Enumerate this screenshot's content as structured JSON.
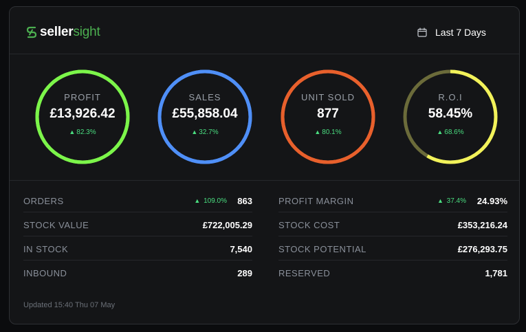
{
  "brand": {
    "bold": "seller",
    "light": "sight"
  },
  "date_range": {
    "label": "Last 7 Days"
  },
  "metrics": [
    {
      "label": "PROFIT",
      "value": "£13,926.42",
      "change": "82.3%",
      "color": "#7cf54a",
      "progress": 1.0
    },
    {
      "label": "SALES",
      "value": "£55,858.04",
      "change": "32.7%",
      "color": "#4f8ff7",
      "progress": 1.0
    },
    {
      "label": "UNIT SOLD",
      "value": "877",
      "change": "80.1%",
      "color": "#e8602c",
      "progress": 1.0
    },
    {
      "label": "R.O.I",
      "value": "58.45%",
      "change": "68.6%",
      "color": "#f2f25a",
      "track_color": "#6b6b3a",
      "progress": 0.5845
    }
  ],
  "stats_left": [
    {
      "label": "ORDERS",
      "value": "863",
      "change": "109.0%"
    },
    {
      "label": "STOCK VALUE",
      "value": "£722,005.29"
    },
    {
      "label": "IN STOCK",
      "value": "7,540"
    },
    {
      "label": "INBOUND",
      "value": "289"
    }
  ],
  "stats_right": [
    {
      "label": "PROFIT MARGIN",
      "value": "24.93%",
      "change": "37.4%"
    },
    {
      "label": "STOCK COST",
      "value": "£353,216.24"
    },
    {
      "label": "STOCK POTENTIAL",
      "value": "£276,293.75"
    },
    {
      "label": "RESERVED",
      "value": "1,781"
    }
  ],
  "footer": {
    "updated": "Updated 15:40 Thu 07 May"
  },
  "colors": {
    "positive": "#4ade80",
    "brand": "#4caf50"
  }
}
